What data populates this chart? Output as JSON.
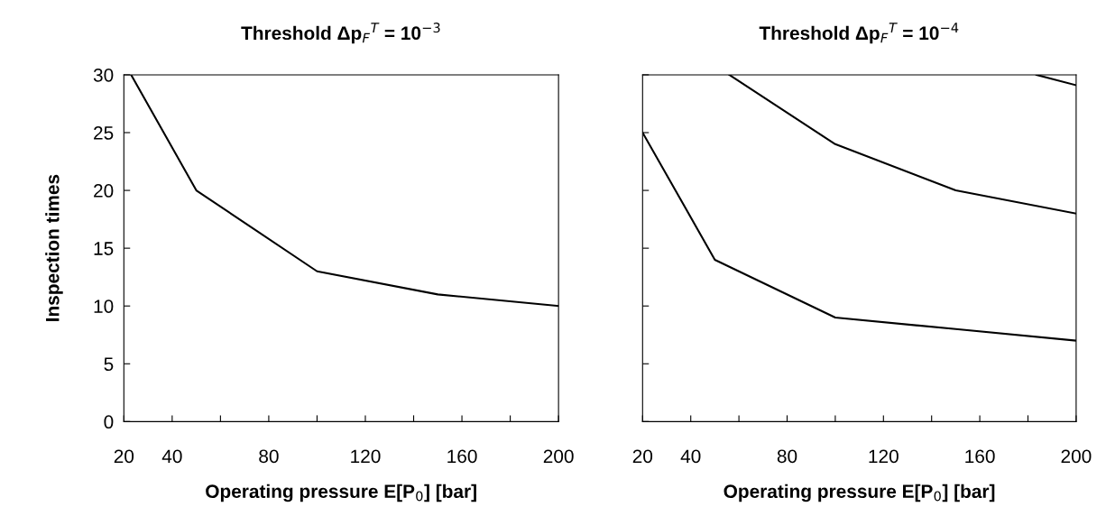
{
  "chart_data": [
    {
      "type": "line",
      "title": "Threshold Δp$_{F}$$^{T}$ = 10$^{−3}$",
      "xlabel": "Operating pressure E[P$_{0}$] [bar]",
      "ylabel": "Inspection times",
      "x": [
        23,
        50,
        100,
        150,
        200
      ],
      "series": [
        {
          "color": "#000000",
          "values": [
            30,
            20,
            13,
            11,
            10
          ]
        }
      ],
      "xlim": [
        20,
        200
      ],
      "ylim": [
        0,
        30
      ],
      "xticks": [
        20,
        40,
        {
          "value": 60,
          "label": null
        },
        80,
        {
          "value": 100,
          "label": null
        },
        120,
        {
          "value": 140,
          "label": null
        },
        160,
        {
          "value": 180,
          "label": null
        },
        200
      ],
      "yticks": [
        0,
        5,
        10,
        15,
        20,
        25,
        30
      ],
      "grid": false,
      "legend": false,
      "marker": "none",
      "line_style": "solid"
    },
    {
      "type": "line",
      "title": "Threshold Δp$_{F}$$^{T}$ = 10$^{−4}$",
      "xlabel": "Operating pressure E[P$_{0}$] [bar]",
      "series": [
        {
          "color": "#000000",
          "x": [
            20,
            50,
            100,
            150,
            200
          ],
          "values": [
            25,
            14,
            9,
            8,
            7
          ]
        },
        {
          "color": "#000000",
          "x": [
            56,
            100,
            150,
            200
          ],
          "values": [
            30,
            24,
            20,
            18
          ]
        },
        {
          "color": "#000000",
          "x": [
            183.5,
            200
          ],
          "values": [
            30,
            29.1
          ]
        }
      ],
      "xlim": [
        20,
        200
      ],
      "ylim": [
        0,
        30
      ],
      "xticks": [
        20,
        40,
        {
          "value": 60,
          "label": null
        },
        80,
        {
          "value": 100,
          "label": null
        },
        120,
        {
          "value": 140,
          "label": null
        },
        160,
        {
          "value": 180,
          "label": null
        },
        200
      ],
      "yticks": [
        0,
        5,
        10,
        15,
        20,
        25,
        30
      ],
      "tick_labels": "x",
      "grid": false,
      "legend": false,
      "marker": "none",
      "line_style": "solid"
    }
  ]
}
